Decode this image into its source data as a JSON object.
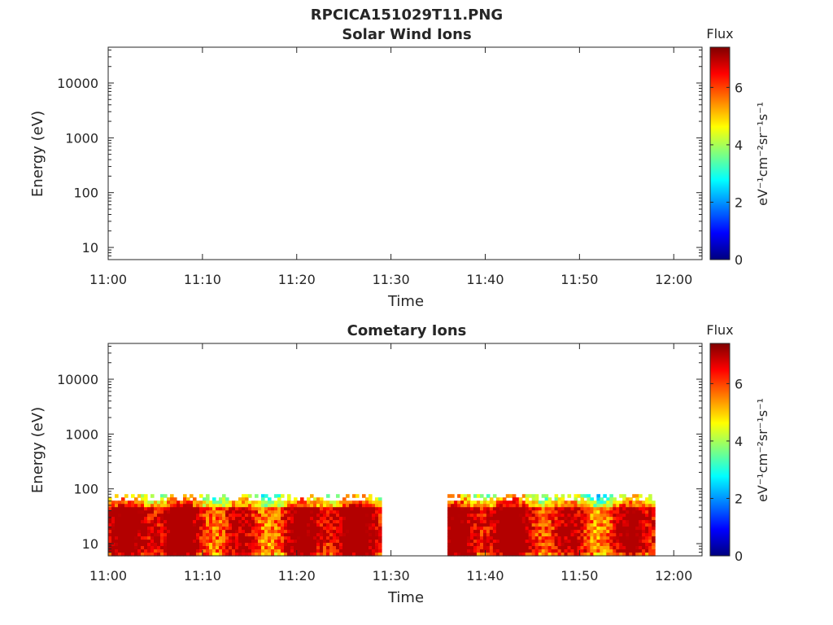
{
  "figure_title": "RPCICA151029T11.PNG",
  "chart_data": [
    {
      "type": "heatmap",
      "title": "Solar Wind Ions",
      "xlabel": "Time",
      "ylabel": "Energy (eV)",
      "x_ticks": [
        "11:00",
        "11:10",
        "11:20",
        "11:30",
        "11:40",
        "11:50",
        "12:00"
      ],
      "x_range": [
        "11:00",
        "12:03"
      ],
      "y_scale": "log",
      "y_ticks": [
        10,
        100,
        1000,
        10000
      ],
      "y_tick_labels": [
        "10",
        "100",
        "1000",
        "10000"
      ],
      "y_range": [
        6,
        45000
      ],
      "grid": false,
      "colorbar": {
        "title": "Flux",
        "label": "eV⁻¹cm⁻²sr⁻¹s⁻¹",
        "range": [
          0,
          7.4
        ],
        "ticks": [
          0,
          2,
          4,
          6
        ],
        "tick_labels": [
          "0",
          "2",
          "4",
          "6"
        ],
        "colormap": "jet"
      },
      "flux_blocks": []
    },
    {
      "type": "heatmap",
      "title": "Cometary Ions",
      "xlabel": "Time",
      "ylabel": "Energy (eV)",
      "x_ticks": [
        "11:00",
        "11:10",
        "11:20",
        "11:30",
        "11:40",
        "11:50",
        "12:00"
      ],
      "x_range": [
        "11:00",
        "12:03"
      ],
      "y_scale": "log",
      "y_ticks": [
        10,
        100,
        1000,
        10000
      ],
      "y_tick_labels": [
        "10",
        "100",
        "1000",
        "10000"
      ],
      "y_range": [
        6,
        45000
      ],
      "grid": false,
      "colorbar": {
        "title": "Flux",
        "label": "eV⁻¹cm⁻²sr⁻¹s⁻¹",
        "range": [
          0,
          7.4
        ],
        "ticks": [
          0,
          2,
          4,
          6
        ],
        "tick_labels": [
          "0",
          "2",
          "4",
          "6"
        ],
        "colormap": "jet"
      },
      "flux_blocks": [
        {
          "time_start": "11:00",
          "time_end": "11:29",
          "energy_min": 6,
          "energy_max": 80,
          "peak_flux": 6.8
        },
        {
          "time_start": "11:36",
          "time_end": "11:58",
          "energy_min": 6,
          "energy_max": 80,
          "peak_flux": 6.8
        }
      ]
    }
  ]
}
